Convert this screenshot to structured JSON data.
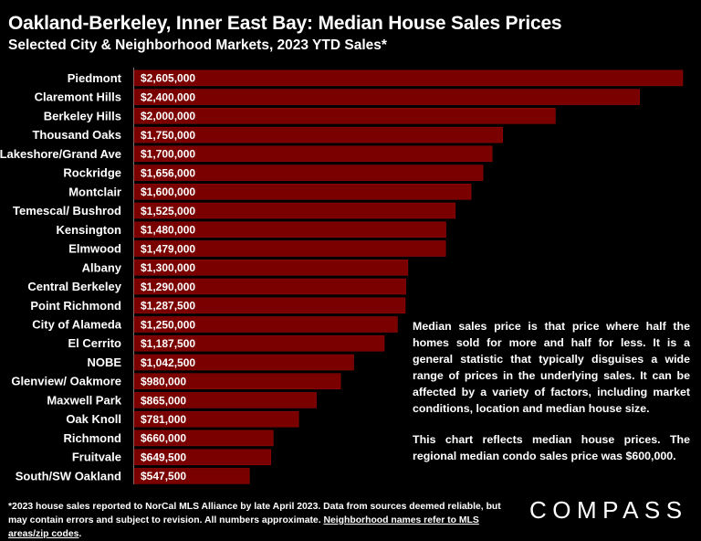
{
  "header": {
    "title": "Oakland-Berkeley, Inner East Bay: Median House Sales Prices",
    "subtitle": "Selected City & Neighborhood Markets, 2023 YTD Sales*"
  },
  "colors": {
    "background": "#000000",
    "bar": "#7a0000",
    "bar_edge": "#9a0a0a",
    "text": "#ffffff"
  },
  "chart_data": {
    "type": "bar",
    "orientation": "horizontal",
    "title": "Oakland-Berkeley, Inner East Bay: Median House Sales Prices",
    "subtitle": "Selected City & Neighborhood Markets, 2023 YTD Sales*",
    "xlim": [
      0,
      2650000
    ],
    "grid": false,
    "legend": "none",
    "categories": [
      "Piedmont",
      "Claremont Hills",
      "Berkeley Hills",
      "Thousand Oaks",
      "Lakeshore/Grand Ave",
      "Rockridge",
      "Montclair",
      "Temescal/ Bushrod",
      "Kensington",
      "Elmwood",
      "Albany",
      "Central Berkeley",
      "Point Richmond",
      "City of Alameda",
      "El Cerrito",
      "NOBE",
      "Glenview/ Oakmore",
      "Maxwell Park",
      "Oak Knoll",
      "Richmond",
      "Fruitvale",
      "South/SW Oakland"
    ],
    "values": [
      2605000,
      2400000,
      2000000,
      1750000,
      1700000,
      1656000,
      1600000,
      1525000,
      1480000,
      1479000,
      1300000,
      1290000,
      1287500,
      1250000,
      1187500,
      1042500,
      980000,
      865000,
      781000,
      660000,
      649500,
      547500
    ],
    "labels": [
      "$2,605,000",
      "$2,400,000",
      "$2,000,000",
      "$1,750,000",
      "$1,700,000",
      "$1,656,000",
      "$1,600,000",
      "$1,525,000",
      "$1,480,000",
      "$1,479,000",
      "$1,300,000",
      "$1,290,000",
      "$1,287,500",
      "$1,250,000",
      "$1,187,500",
      "$1,042,500",
      "$980,000",
      "$865,000",
      "$781,000",
      "$660,000",
      "$649,500",
      "$547,500"
    ]
  },
  "note": {
    "p1": "Median sales price is that price where half the homes sold for more and half for less. It is a general statistic that typically disguises a wide range of prices in the underlying sales. It can be affected by a variety of factors, including market conditions, location and median house size.",
    "p2": "This chart reflects median house prices. The regional median condo sales price was $600,000."
  },
  "footnote": {
    "text": "*2023 house sales reported to NorCal MLS Alliance by late April 2023. Data from sources deemed reliable, but may contain errors and subject to revision. All numbers approximate.",
    "link_text": "Neighborhood names refer to MLS areas/zip codes",
    "end": "."
  },
  "logo": {
    "text": "COMPASS"
  }
}
